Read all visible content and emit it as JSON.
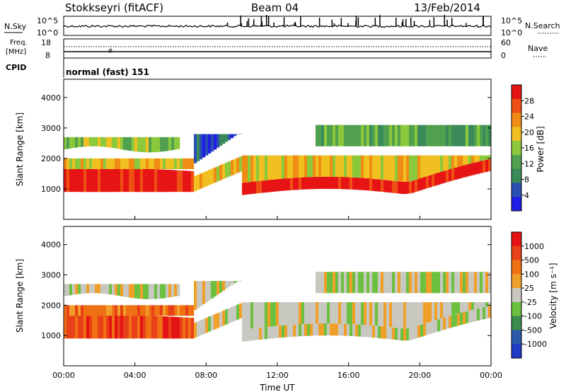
{
  "header": {
    "station": "Stokkseyri (fitACF)",
    "beam": "Beam 04",
    "date": "13/Feb/2014"
  },
  "nsky_panel": {
    "left_label": "N.Sky",
    "left_ticks": [
      "10^5",
      "10^0"
    ],
    "right_ticks": [
      "10^5",
      "10^0"
    ],
    "right_label": "N.Search"
  },
  "freq_panel": {
    "left_label_1": "Freq.",
    "left_label_2": "[MHz]",
    "left_ticks": [
      "18",
      "8"
    ],
    "right_ticks": [
      "60",
      "0"
    ],
    "right_label": "Nave",
    "cpid_label": "CPID",
    "mode": "normal (fast) 151"
  },
  "colors": {
    "power_scale": [
      "#1e1ee6",
      "#2a4fb0",
      "#3a8a5a",
      "#50a050",
      "#8cc83c",
      "#f0c020",
      "#f08c14",
      "#f05014",
      "#e61414"
    ],
    "velocity_scale": [
      "#1e3cc8",
      "#2a5aa8",
      "#3c8c50",
      "#6cc040",
      "#c8c8c0",
      "#f0a028",
      "#f07014",
      "#e84018",
      "#e61414"
    ]
  },
  "chart_data": [
    {
      "type": "heatmap",
      "name_axis": "Power [dB]",
      "ylabel": "Slant Range [km]",
      "xlabel": "",
      "yticks": [
        1000,
        2000,
        3000,
        4000
      ],
      "ylim": [
        0,
        4600
      ],
      "colorbar_ticks": [
        "28",
        "24",
        "20",
        "16",
        "12",
        "8",
        "4"
      ],
      "colorbar_label": "Power [dB]"
    },
    {
      "type": "heatmap",
      "ylabel": "Slant Range [km]",
      "xlabel": "Time UT",
      "yticks": [
        1000,
        2000,
        3000,
        4000
      ],
      "ylim": [
        0,
        4600
      ],
      "x_ticks": [
        "00:00",
        "04:00",
        "08:00",
        "12:00",
        "16:00",
        "20:00",
        "00:00"
      ],
      "colorbar_ticks": [
        "1000",
        "500",
        "100",
        "25",
        "-25",
        "-100",
        "-500",
        "-1000"
      ],
      "colorbar_label": "Velocity [m s⁻¹]"
    }
  ]
}
